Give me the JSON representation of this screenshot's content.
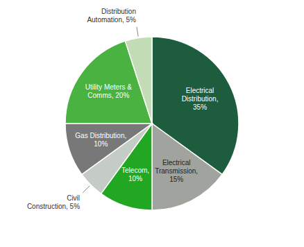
{
  "chart_data": {
    "type": "pie",
    "values": [
      35,
      15,
      10,
      5,
      10,
      20,
      5
    ],
    "value_labels": [
      "Electrical\nDistribution,\n35%",
      "Electrical\nTransmission,\n15%",
      "Telecom,\n10%",
      "Civil\nConstruction, 5%",
      "Gas Distribution,\n10%",
      "Utility Meters &\nComms, 20%",
      "Distribution\nAutomation, 5%"
    ],
    "colors": [
      "#1e5c3e",
      "#a0a39e",
      "#22a722",
      "#c5ccc5",
      "#787878",
      "#4ab240",
      "#c2ddb5"
    ],
    "data_labels": true
  }
}
